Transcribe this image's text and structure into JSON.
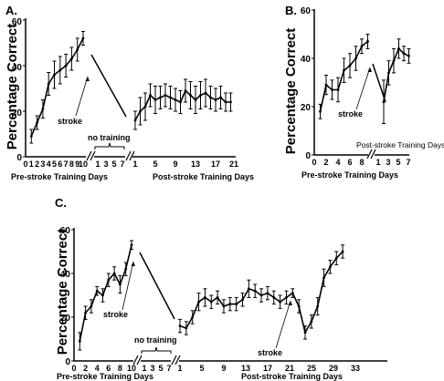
{
  "panels": [
    {
      "label": "A.",
      "ylabel": "Percentage Correct",
      "yticks": [
        "0",
        "20",
        "40",
        "60"
      ],
      "pre_xticks": [
        "0",
        "1",
        "2",
        "3",
        "4",
        "5",
        "6",
        "7",
        "8",
        "9",
        "10"
      ],
      "gap_xticks": [
        "1",
        "3",
        "5",
        "7"
      ],
      "post_xticks": [
        "1",
        "5",
        "9",
        "13",
        "17",
        "21"
      ],
      "pre_xlabel": "Pre-stroke Training Days",
      "post_xlabel": "Post-stroke Training Days",
      "stroke_label": "stroke",
      "gap_label": "no training"
    },
    {
      "label": "B.",
      "ylabel": "Percentage Correct",
      "yticks": [
        "0",
        "20",
        "40",
        "60"
      ],
      "pre_xticks": [
        "0",
        "2",
        "4",
        "6",
        "8"
      ],
      "post_xticks": [
        "1",
        "3",
        "5",
        "7"
      ],
      "pre_xlabel": "Pre-stroke Training Days",
      "post_xlabel": "Post-stroke Training Days",
      "stroke_label": "stroke"
    },
    {
      "label": "C.",
      "ylabel": "Percentage Correct",
      "yticks": [
        "0",
        "20",
        "40",
        "60"
      ],
      "pre_xticks": [
        "0",
        "2",
        "4",
        "6",
        "8",
        "10"
      ],
      "gap_xticks": [
        "1",
        "3",
        "5",
        "7"
      ],
      "post_xticks": [
        "1",
        "5",
        "9",
        "13",
        "17",
        "21",
        "25",
        "29",
        "33"
      ],
      "pre_xlabel": "Pre-stroke Training Days",
      "post_xlabel": "Post-stroke Training Days",
      "stroke_label_1": "stroke",
      "stroke_label_2": "stroke",
      "gap_label": "no training"
    }
  ],
  "chart_data": [
    {
      "type": "line",
      "title": "A.",
      "ylabel": "Percentage Correct",
      "ylim": [
        0,
        60
      ],
      "pre": {
        "xlabel": "Pre-stroke Training Days",
        "x": [
          1,
          2,
          3,
          4,
          5,
          6,
          7,
          8,
          9,
          10
        ],
        "y": [
          9,
          15,
          21,
          32,
          36,
          38,
          40,
          43,
          47,
          52
        ],
        "err": [
          3,
          3,
          4,
          5,
          6,
          6,
          5,
          5,
          5,
          3
        ]
      },
      "post": {
        "xlabel": "Post-stroke Training Days",
        "xlim": [
          1,
          21
        ],
        "x": [
          1,
          2,
          3,
          4,
          5,
          6,
          7,
          8,
          9,
          10,
          11,
          12,
          13,
          14,
          15,
          16,
          17,
          18,
          19,
          20
        ],
        "y": [
          16,
          20,
          22,
          27,
          25,
          26,
          27,
          26,
          25,
          24,
          29,
          27,
          25,
          27,
          28,
          26,
          25,
          26,
          24,
          24
        ],
        "err": [
          4,
          6,
          6,
          5,
          6,
          5,
          5,
          5,
          5,
          5,
          5,
          6,
          6,
          6,
          6,
          5,
          5,
          5,
          4,
          4
        ]
      }
    },
    {
      "type": "line",
      "title": "B.",
      "ylabel": "Percentage Correct",
      "ylim": [
        0,
        60
      ],
      "pre": {
        "xlabel": "Pre-stroke Training Days",
        "x": [
          1,
          2,
          3,
          4,
          5,
          6,
          7,
          8,
          9
        ],
        "y": [
          18,
          29,
          27,
          27,
          35,
          37,
          40,
          45,
          47
        ],
        "err": [
          3,
          4,
          4,
          5,
          5,
          5,
          5,
          3,
          3
        ]
      },
      "post": {
        "xlabel": "Post-stroke Training Days",
        "x": [
          1,
          2,
          3,
          4,
          5,
          6
        ],
        "y": [
          22,
          34,
          39,
          44,
          42,
          41
        ],
        "err": [
          9,
          5,
          5,
          4,
          3,
          3
        ]
      }
    },
    {
      "type": "line",
      "title": "C.",
      "ylabel": "Percentage Correct",
      "ylim": [
        0,
        60
      ],
      "pre": {
        "xlabel": "Pre-stroke Training Days",
        "x": [
          1,
          2,
          3,
          4,
          5,
          6,
          7,
          8,
          9,
          10
        ],
        "y": [
          9,
          22,
          25,
          32,
          30,
          37,
          40,
          35,
          42,
          53
        ],
        "err": [
          4,
          3,
          3,
          2,
          3,
          3,
          3,
          4,
          3,
          2
        ]
      },
      "post": {
        "xlabel": "Post-stroke Training Days",
        "x": [
          1,
          2,
          3,
          4,
          5,
          6,
          7,
          8,
          9,
          10,
          11,
          12,
          13,
          14,
          15,
          16,
          17,
          18,
          19,
          20,
          21,
          22,
          23,
          24,
          25,
          26,
          27
        ],
        "y": [
          16,
          15,
          20,
          27,
          29,
          27,
          29,
          25,
          26,
          26,
          28,
          33,
          32,
          30,
          31,
          29,
          27,
          29,
          31,
          25,
          13,
          18,
          25,
          38,
          43,
          47,
          50
        ],
        "err": [
          3,
          3,
          3,
          4,
          4,
          3,
          3,
          3,
          3,
          3,
          3,
          4,
          3,
          3,
          3,
          3,
          3,
          3,
          2,
          3,
          3,
          3,
          4,
          4,
          3,
          3,
          3
        ]
      }
    }
  ]
}
